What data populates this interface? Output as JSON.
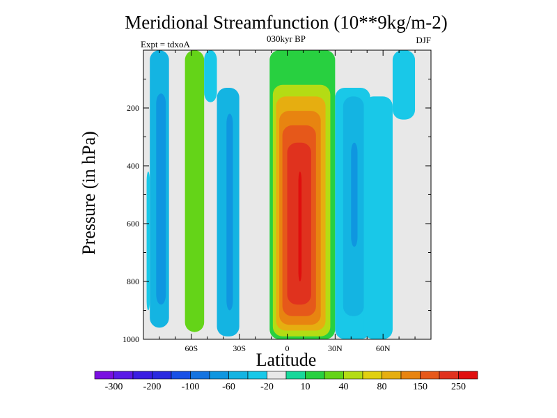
{
  "chart_data": {
    "type": "heatmap",
    "title": "Meridional Streamfunction (10**9kg/m-2)",
    "subtitle": "030kyr BP",
    "left_annotation": "Expt = tdxoA",
    "right_annotation": "DJF",
    "xlabel": "Latitude",
    "ylabel": "Pressure (in hPa)",
    "x_ticks": [
      "60S",
      "30S",
      "0",
      "30N",
      "60N"
    ],
    "x_tick_values": [
      -60,
      -30,
      0,
      30,
      60
    ],
    "y_ticks": [
      "200",
      "400",
      "600",
      "800",
      "1000"
    ],
    "y_tick_values": [
      200,
      400,
      600,
      800,
      1000
    ],
    "xlim": [
      -90,
      90
    ],
    "ylim": [
      1000,
      0
    ],
    "colorbar": {
      "labels": [
        "-300",
        "-200",
        "-100",
        "-60",
        "-20",
        "10",
        "40",
        "80",
        "150",
        "250"
      ],
      "colors": [
        "#7a10e0",
        "#5a1ae6",
        "#3a1ee2",
        "#2a2adf",
        "#1850e6",
        "#1473e0",
        "#0f96e0",
        "#14b4e2",
        "#19c8e8",
        "#e8e8e8",
        "#18d89a",
        "#28d040",
        "#64d418",
        "#b4dc14",
        "#e0d010",
        "#e6ae10",
        "#e88410",
        "#e6581a",
        "#e0321e",
        "#e00e0e"
      ]
    },
    "bands": [
      {
        "x": [
          -88,
          -86
        ],
        "p_top": 420,
        "p_bot": 900,
        "value": -20
      },
      {
        "x": [
          -86,
          -74
        ],
        "p_top": 0,
        "p_bot": 960,
        "value": -40
      },
      {
        "x": [
          -82,
          -76
        ],
        "p_top": 150,
        "p_bot": 880,
        "value": -60
      },
      {
        "x": [
          -64,
          -52
        ],
        "p_top": 0,
        "p_bot": 975,
        "value": 30
      },
      {
        "x": [
          -52,
          -44
        ],
        "p_top": 0,
        "p_bot": 180,
        "value": -20
      },
      {
        "x": [
          -44,
          -30
        ],
        "p_top": 130,
        "p_bot": 990,
        "value": -40
      },
      {
        "x": [
          -38,
          -34
        ],
        "p_top": 220,
        "p_bot": 900,
        "value": -60
      },
      {
        "x": [
          -11,
          30
        ],
        "p_top": 0,
        "p_bot": 1000,
        "value": 20
      },
      {
        "x": [
          -9,
          27
        ],
        "p_top": 120,
        "p_bot": 990,
        "value": 60
      },
      {
        "x": [
          -7,
          24
        ],
        "p_top": 160,
        "p_bot": 970,
        "value": 100
      },
      {
        "x": [
          -5,
          21
        ],
        "p_top": 210,
        "p_bot": 950,
        "value": 150
      },
      {
        "x": [
          -3,
          18
        ],
        "p_top": 260,
        "p_bot": 920,
        "value": 200
      },
      {
        "x": [
          0,
          15
        ],
        "p_top": 320,
        "p_bot": 880,
        "value": 250
      },
      {
        "x": [
          7,
          9
        ],
        "p_top": 420,
        "p_bot": 800,
        "value": 300
      },
      {
        "x": [
          30,
          52
        ],
        "p_top": 130,
        "p_bot": 1000,
        "value": -20
      },
      {
        "x": [
          35,
          48
        ],
        "p_top": 160,
        "p_bot": 920,
        "value": -40
      },
      {
        "x": [
          40,
          44
        ],
        "p_top": 320,
        "p_bot": 680,
        "value": -60
      },
      {
        "x": [
          48,
          66
        ],
        "p_top": 160,
        "p_bot": 1000,
        "value": -20
      },
      {
        "x": [
          66,
          80
        ],
        "p_top": 0,
        "p_bot": 240,
        "value": -20
      }
    ]
  }
}
